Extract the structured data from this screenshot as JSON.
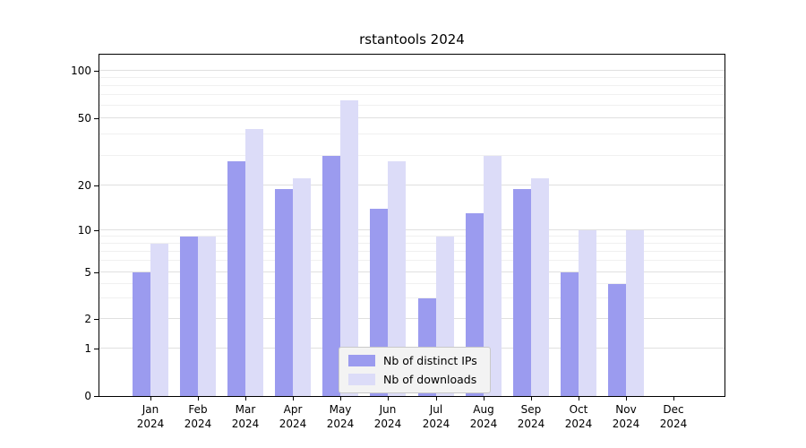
{
  "title": "rstantools 2024",
  "colors": {
    "bar_ips": "#9b9bef",
    "bar_downloads": "#dcdcf8",
    "grid_major": "#e0e0e0",
    "grid_minor": "#f0f0f0",
    "axis": "#000000",
    "legend_bg": "#f3f3f3",
    "legend_border": "#c9c9c9"
  },
  "chart_data": {
    "type": "bar",
    "title": "rstantools 2024",
    "categories": [
      "Jan 2024",
      "Feb 2024",
      "Mar 2024",
      "Apr 2024",
      "May 2024",
      "Jun 2024",
      "Jul 2024",
      "Aug 2024",
      "Sep 2024",
      "Oct 2024",
      "Nov 2024",
      "Dec 2024"
    ],
    "series": [
      {
        "name": "Nb of distinct IPs",
        "values": [
          5,
          9,
          28,
          19,
          30,
          14,
          3,
          13,
          19,
          5,
          4,
          0
        ]
      },
      {
        "name": "Nb of downloads",
        "values": [
          8,
          9,
          43,
          22,
          65,
          28,
          9,
          30,
          22,
          10,
          10,
          0
        ]
      }
    ],
    "y_ticks": [
      0,
      1,
      2,
      5,
      10,
      20,
      50,
      100
    ],
    "y_minor_gridlines": [
      3,
      4,
      6,
      7,
      8,
      9,
      30,
      40,
      60,
      70,
      80,
      90
    ],
    "y_scale": "log-like",
    "ylim": [
      0,
      130
    ],
    "xlabel": "",
    "ylabel": "",
    "grid": true,
    "legend_position": "bottom-center"
  }
}
